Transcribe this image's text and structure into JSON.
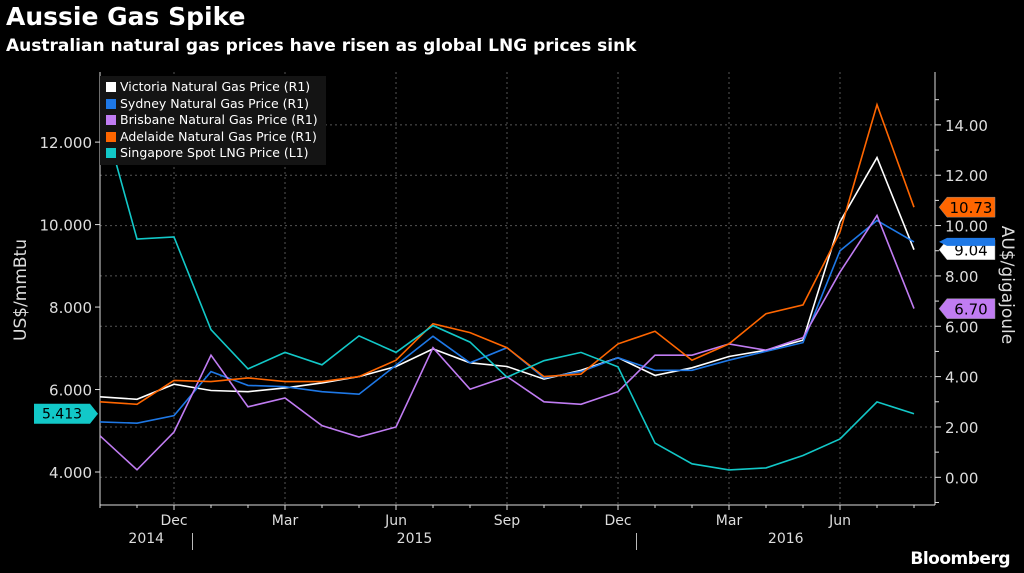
{
  "title": "Aussie Gas Spike",
  "subtitle": "Australian natural gas prices have risen as global LNG prices sink",
  "logo": "Bloomberg",
  "chart_data": {
    "type": "line",
    "title": "Aussie Gas Spike",
    "subtitle": "Australian natural gas prices have risen as global LNG prices sink",
    "x": [
      "2014-10",
      "2014-11",
      "2014-12",
      "2015-01",
      "2015-02",
      "2015-03",
      "2015-04",
      "2015-05",
      "2015-06",
      "2015-07",
      "2015-08",
      "2015-09",
      "2015-10",
      "2015-11",
      "2015-12",
      "2016-01",
      "2016-02",
      "2016-03",
      "2016-04",
      "2016-05",
      "2016-06",
      "2016-07",
      "2016-08"
    ],
    "x_tick_labels": [
      {
        "label": "Dec",
        "x": "2014-12"
      },
      {
        "label": "Mar",
        "x": "2015-03"
      },
      {
        "label": "Jun",
        "x": "2015-06"
      },
      {
        "label": "Sep",
        "x": "2015-09"
      },
      {
        "label": "Dec",
        "x": "2015-12"
      },
      {
        "label": "Mar",
        "x": "2016-03"
      },
      {
        "label": "Jun",
        "x": "2016-06"
      }
    ],
    "year_labels": [
      "2014",
      "2015",
      "2016"
    ],
    "ylabel_left": "US$/mmBtu",
    "ylabel_right": "AU$/gigajoule",
    "ylim_left": [
      3.2,
      13.7
    ],
    "ylim_right": [
      -1.1,
      16.1
    ],
    "yticks_left": [
      "4.000",
      "6.000",
      "8.000",
      "10.000",
      "12.000"
    ],
    "yticks_right": [
      "0.00",
      "2.00",
      "4.00",
      "6.00",
      "8.00",
      "10.00",
      "12.00",
      "14.00"
    ],
    "grid": true,
    "legend_position": "top-left",
    "series": [
      {
        "name": "Victoria Natural Gas Price (R1)",
        "axis": "right",
        "color": "#ffffff",
        "last_label": "9.04",
        "label_text_color": "#000000",
        "values": [
          3.2,
          3.1,
          3.7,
          3.45,
          3.4,
          3.55,
          3.75,
          4.0,
          4.4,
          5.1,
          4.55,
          4.4,
          3.9,
          4.25,
          4.75,
          4.05,
          4.35,
          4.8,
          5.05,
          5.45,
          10.15,
          12.7,
          9.04
        ]
      },
      {
        "name": "Sydney Natural Gas Price (R1)",
        "axis": "right",
        "color": "#1e78e6",
        "values": [
          2.2,
          2.15,
          2.45,
          4.2,
          3.65,
          3.6,
          3.4,
          3.3,
          4.45,
          5.6,
          4.55,
          5.15,
          3.95,
          4.2,
          4.75,
          4.25,
          4.25,
          4.65,
          5.0,
          5.35,
          9.0,
          10.2,
          9.35
        ]
      },
      {
        "name": "Brisbane Natural Gas Price (R1)",
        "axis": "right",
        "color": "#c07cf2",
        "last_label": "6.70",
        "label_text_color": "#000000",
        "values": [
          1.65,
          0.3,
          1.8,
          4.85,
          2.8,
          3.15,
          2.05,
          1.6,
          2.0,
          5.15,
          3.5,
          4.0,
          3.0,
          2.9,
          3.4,
          4.85,
          4.85,
          5.3,
          5.05,
          5.55,
          8.15,
          10.4,
          6.7
        ]
      },
      {
        "name": "Adelaide Natural Gas Price (R1)",
        "axis": "right",
        "color": "#ff6600",
        "last_label": "10.73",
        "label_text_color": "#000000",
        "values": [
          3.0,
          2.9,
          3.85,
          3.8,
          3.95,
          3.8,
          3.8,
          4.0,
          4.65,
          6.1,
          5.75,
          5.15,
          4.0,
          4.1,
          5.3,
          5.8,
          4.65,
          5.3,
          6.5,
          6.85,
          9.75,
          14.8,
          10.73
        ]
      },
      {
        "name": "Singapore Spot LNG Price (L1)",
        "axis": "left",
        "color": "#12c8c8",
        "last_label": "5.413",
        "label_text_color": "#000000",
        "values": [
          12.9,
          9.65,
          9.7,
          7.45,
          6.5,
          6.9,
          6.6,
          7.3,
          6.9,
          7.55,
          7.15,
          6.3,
          6.7,
          6.9,
          6.55,
          4.7,
          4.2,
          4.05,
          4.1,
          4.4,
          4.8,
          5.7,
          5.413
        ]
      }
    ]
  }
}
